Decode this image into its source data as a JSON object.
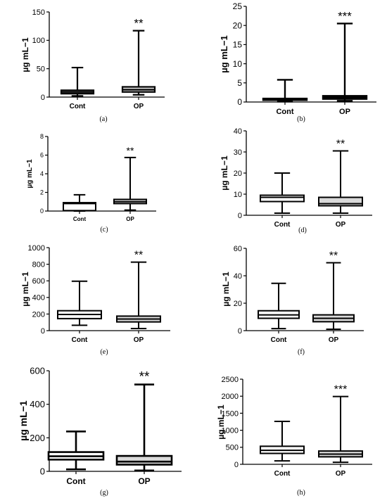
{
  "chart_data": [
    {
      "panel": "(a)",
      "type": "box",
      "ylabel": "µg mL−1",
      "ylim": [
        0,
        150
      ],
      "yticks": [
        0,
        50,
        100,
        150
      ],
      "categories": [
        "Cont",
        "OP"
      ],
      "boxes": [
        {
          "category": "Cont",
          "min": 2,
          "q1": 6,
          "median": 9,
          "q3": 12,
          "max": 52,
          "fill": "#ffffff"
        },
        {
          "category": "OP",
          "min": 4,
          "q1": 9,
          "median": 13,
          "q3": 18,
          "max": 117,
          "fill": "#d9d9d9"
        }
      ],
      "significance": "**",
      "significance_category": "OP"
    },
    {
      "panel": "(b)",
      "type": "box",
      "ylabel": "µg mL−1",
      "ylim": [
        0,
        25
      ],
      "yticks": [
        0,
        5,
        10,
        15,
        20,
        25
      ],
      "categories": [
        "Cont",
        "OP"
      ],
      "boxes": [
        {
          "category": "Cont",
          "min": 0.1,
          "q1": 0.5,
          "median": 0.7,
          "q3": 0.9,
          "max": 5.8,
          "fill": "#ffffff"
        },
        {
          "category": "OP",
          "min": 0.3,
          "q1": 0.8,
          "median": 1.2,
          "q3": 1.6,
          "max": 20.5,
          "fill": "#d9d9d9"
        }
      ],
      "significance": "***",
      "significance_category": "OP"
    },
    {
      "panel": "(c)",
      "type": "box",
      "ylabel": "µg mL−1",
      "ylim": [
        0,
        8
      ],
      "yticks": [
        0,
        2,
        4,
        6,
        8
      ],
      "categories": [
        "Cont",
        "OP"
      ],
      "boxes": [
        {
          "category": "Cont",
          "min": 0.0,
          "q1": 0.05,
          "median": 0.8,
          "q3": 0.9,
          "max": 1.75,
          "fill": "#ffffff"
        },
        {
          "category": "OP",
          "min": 0.1,
          "q1": 0.8,
          "median": 1.0,
          "q3": 1.25,
          "max": 5.75,
          "fill": "#d9d9d9"
        }
      ],
      "significance": "**",
      "significance_category": "OP"
    },
    {
      "panel": "(d)",
      "type": "box",
      "ylabel": "µg mL−1",
      "ylim": [
        0,
        40
      ],
      "yticks": [
        0,
        10,
        20,
        30,
        40
      ],
      "categories": [
        "Cont",
        "OP"
      ],
      "boxes": [
        {
          "category": "Cont",
          "min": 1,
          "q1": 6.5,
          "median": 8.5,
          "q3": 9.5,
          "max": 20,
          "fill": "#ffffff"
        },
        {
          "category": "OP",
          "min": 1,
          "q1": 4.5,
          "median": 5.5,
          "q3": 8.5,
          "max": 30.5,
          "fill": "#d9d9d9"
        }
      ],
      "significance": "**",
      "significance_category": "OP"
    },
    {
      "panel": "(e)",
      "type": "box",
      "ylabel": "µg mL−1",
      "ylim": [
        0,
        1000
      ],
      "yticks": [
        0,
        200,
        400,
        600,
        800,
        1000
      ],
      "categories": [
        "Cont",
        "OP"
      ],
      "boxes": [
        {
          "category": "Cont",
          "min": 65,
          "q1": 145,
          "median": 195,
          "q3": 240,
          "max": 595,
          "fill": "#ffffff"
        },
        {
          "category": "OP",
          "min": 25,
          "q1": 105,
          "median": 140,
          "q3": 175,
          "max": 825,
          "fill": "#d9d9d9"
        }
      ],
      "significance": "**",
      "significance_category": "OP"
    },
    {
      "panel": "(f)",
      "type": "box",
      "ylabel": "µg mL−1",
      "ylim": [
        0,
        60
      ],
      "yticks": [
        0,
        20,
        40,
        60
      ],
      "categories": [
        "Cont",
        "OP"
      ],
      "boxes": [
        {
          "category": "Cont",
          "min": 1.5,
          "q1": 9,
          "median": 11.5,
          "q3": 14.5,
          "max": 34.5,
          "fill": "#ffffff"
        },
        {
          "category": "OP",
          "min": 1,
          "q1": 6.5,
          "median": 9,
          "q3": 11.5,
          "max": 49.5,
          "fill": "#d9d9d9"
        }
      ],
      "significance": "**",
      "significance_category": "OP"
    },
    {
      "panel": "(g)",
      "type": "box",
      "ylabel": "µg mL−1",
      "ylim": [
        0,
        600
      ],
      "yticks": [
        0,
        200,
        400,
        600
      ],
      "categories": [
        "Cont",
        "OP"
      ],
      "boxes": [
        {
          "category": "Cont",
          "min": 12,
          "q1": 70,
          "median": 90,
          "q3": 115,
          "max": 238,
          "fill": "#ffffff"
        },
        {
          "category": "OP",
          "min": 5,
          "q1": 40,
          "median": 58,
          "q3": 92,
          "max": 518,
          "fill": "#d9d9d9"
        }
      ],
      "significance": "**",
      "significance_category": "OP"
    },
    {
      "panel": "(h)",
      "type": "box",
      "ylabel": "µg mL−1",
      "ylim": [
        0,
        2500
      ],
      "yticks": [
        0,
        500,
        1000,
        1500,
        2000,
        2500
      ],
      "categories": [
        "Cont",
        "OP"
      ],
      "boxes": [
        {
          "category": "Cont",
          "min": 100,
          "q1": 320,
          "median": 410,
          "q3": 530,
          "max": 1260,
          "fill": "#ffffff"
        },
        {
          "category": "OP",
          "min": 60,
          "q1": 220,
          "median": 300,
          "q3": 390,
          "max": 1990,
          "fill": "#d9d9d9"
        }
      ],
      "significance": "***",
      "significance_category": "OP"
    }
  ]
}
